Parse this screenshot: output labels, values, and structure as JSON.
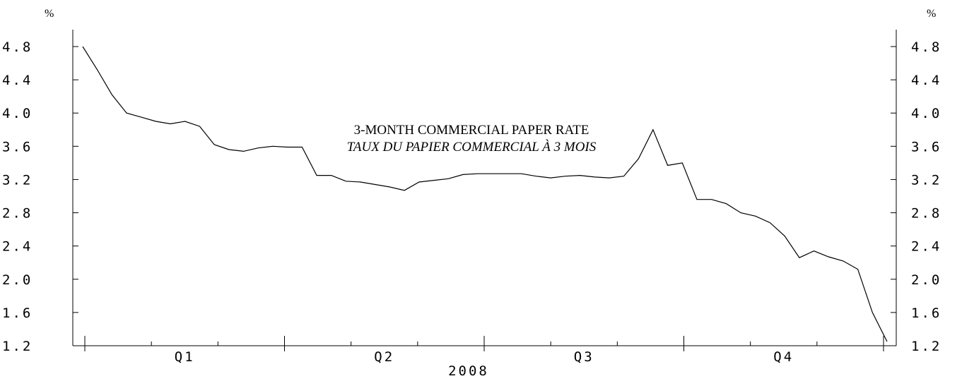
{
  "chart_data": {
    "type": "line",
    "title": "3-MONTH COMMERCIAL PAPER RATE",
    "subtitle": "TAUX DU PAPIER COMMERCIAL À 3 MOIS",
    "xlabel": "2008",
    "ylabel_left": "%",
    "ylabel_right": "%",
    "ylim": [
      1.2,
      4.8
    ],
    "yticks": [
      "4.8",
      "4.4",
      "4.0",
      "3.6",
      "3.2",
      "2.8",
      "2.4",
      "2.0",
      "1.6",
      "1.2"
    ],
    "quarters": [
      "Q1",
      "Q2",
      "Q3",
      "Q4"
    ],
    "grid": false,
    "legend": "none",
    "series": [
      {
        "values": [
          4.8,
          4.52,
          4.22,
          4.0,
          3.95,
          3.9,
          3.87,
          3.9,
          3.84,
          3.62,
          3.56,
          3.54,
          3.58,
          3.6,
          3.59,
          3.59,
          3.25,
          3.25,
          3.18,
          3.17,
          3.14,
          3.11,
          3.07,
          3.17,
          3.19,
          3.21,
          3.26,
          3.27,
          3.27,
          3.27,
          3.27,
          3.24,
          3.22,
          3.24,
          3.25,
          3.23,
          3.22,
          3.24,
          3.45,
          3.8,
          3.37,
          3.4,
          2.96,
          2.96,
          2.91,
          2.8,
          2.76,
          2.68,
          2.52,
          2.26,
          2.34,
          2.27,
          2.22,
          2.12,
          1.6,
          1.25
        ]
      }
    ]
  }
}
